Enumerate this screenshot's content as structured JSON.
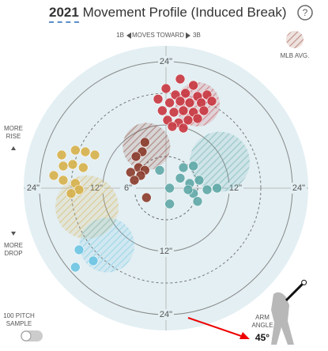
{
  "header": {
    "year": "2021",
    "title": "Movement Profile (Induced Break)",
    "help": "?"
  },
  "chart_data": {
    "type": "scatter",
    "direction": {
      "left": "1B",
      "middle": "MOVES TOWARD",
      "right": "3B"
    },
    "avg_label": "MLB AVG.",
    "top_label": "MORE RISE",
    "bottom_label": "MORE DROP",
    "xlim": [
      -27,
      27
    ],
    "ylim": [
      -27,
      27
    ],
    "ringticks": [
      {
        "value": 6,
        "label": "6\""
      },
      {
        "value": 12,
        "label": "12\""
      },
      {
        "value": 24,
        "label": "24\""
      }
    ],
    "dashed_rings": [
      6,
      18
    ],
    "series": [
      {
        "color": "#c8353f",
        "x": [
          2.7,
          0,
          5.2,
          1.8,
          3.7,
          6.0,
          7.8,
          -1.5,
          0.7,
          2.7,
          4.5,
          6.7,
          8.7,
          -0.7,
          1.5,
          3.3,
          5.2,
          7.2,
          0.3,
          2.4,
          4.2,
          6.0,
          3.3,
          1.2
        ],
        "values": [
          20.7,
          18.9,
          19.5,
          17.7,
          18.0,
          17.4,
          17.7,
          16.9,
          16.2,
          16.5,
          16.2,
          16.2,
          16.5,
          14.7,
          14.4,
          14.7,
          14.4,
          14.7,
          12.9,
          12.4,
          12.9,
          13.2,
          11.4,
          11.7
        ],
        "avg": [
          6.0,
          15.9,
          4.2
        ]
      },
      {
        "color": "#8a3a2a",
        "x": [
          -4.0,
          -4.5,
          -5.7,
          -5.2,
          -4.0,
          -6.7,
          -4.8,
          -6.0,
          -3.7
        ],
        "values": [
          8.7,
          6.9,
          6.0,
          3.9,
          3.4,
          3.0,
          2.4,
          1.5,
          -1.8
        ],
        "avg": [
          -3.7,
          7.9,
          4.5
        ]
      },
      {
        "color": "#d6b04a",
        "x": [
          -19.8,
          -17.2,
          -15.3,
          -13.5,
          -19.5,
          -17.7,
          -15.7,
          -21.3,
          -19.5,
          -17.2,
          -16.5,
          -18.0
        ],
        "values": [
          6.3,
          7.2,
          6.9,
          6.3,
          4.2,
          4.5,
          3.9,
          2.4,
          1.5,
          0.9,
          -0.3,
          -1.0
        ],
        "avg": [
          -15.0,
          -3.6,
          6.0
        ]
      },
      {
        "color": "#5ea7a6",
        "x": [
          -1.2,
          3.3,
          5.2,
          0.7,
          2.7,
          4.5,
          6.3,
          5.2,
          7.8,
          9.7,
          6.0,
          0.7,
          4.2
        ],
        "values": [
          3.4,
          3.9,
          4.2,
          0,
          1.9,
          0.9,
          1.5,
          -1.0,
          -0.3,
          0,
          -2.5,
          -3.0,
          -0.3
        ],
        "avg": [
          10.2,
          5.0,
          5.7
        ]
      },
      {
        "color": "#6cc4e2",
        "x": [
          -16.5,
          -17.2,
          -13.8
        ],
        "values": [
          -11.7,
          -15.0,
          -13.8
        ],
        "avg": [
          -11.2,
          -10.8,
          5.2
        ]
      }
    ]
  },
  "sample": "100 PITCH SAMPLE",
  "arm_angle": {
    "title": "ARM ANGLE",
    "value": {
      "value": 45,
      "label": "45°"
    }
  }
}
